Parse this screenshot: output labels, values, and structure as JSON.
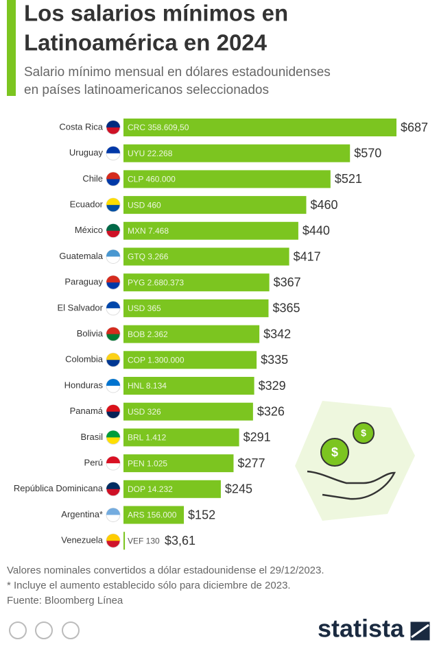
{
  "chart_data": {
    "type": "bar",
    "title": [
      "Los salarios mínimos en",
      "Latinoamérica en 2024"
    ],
    "subtitle": [
      "Salario mínimo mensual en dólares estadounidenses",
      "en países latinoamericanos seleccionados"
    ],
    "categories": [
      "Costa Rica",
      "Uruguay",
      "Chile",
      "Ecuador",
      "México",
      "Guatemala",
      "Paraguay",
      "El Salvador",
      "Bolivia",
      "Colombia",
      "Honduras",
      "Panamá",
      "Brasil",
      "Perú",
      "República Dominicana",
      "Argentina*",
      "Venezuela"
    ],
    "values": [
      687,
      570,
      521,
      460,
      440,
      417,
      367,
      365,
      342,
      335,
      329,
      326,
      291,
      277,
      245,
      152,
      3.61
    ],
    "value_labels": [
      "$687",
      "$570",
      "$521",
      "$460",
      "$440",
      "$417",
      "$367",
      "$365",
      "$342",
      "$335",
      "$329",
      "$326",
      "$291",
      "$277",
      "$245",
      "$152",
      "$3,61"
    ],
    "local_labels": [
      "CRC 358.609,50",
      "UYU 22.268",
      "CLP 460.000",
      "USD 460",
      "MXN 7.468",
      "GTQ 3.266",
      "PYG 2.680.373",
      "USD 365",
      "BOB 2.362",
      "COP 1.300.000",
      "HNL 8.134",
      "USD 326",
      "BRL 1.412",
      "PEN 1.025",
      "DOP 14.232",
      "ARS 156.000",
      "VEF 130"
    ],
    "color": "#7cc520",
    "notes": [
      "Valores nominales convertidos a dólar estadounidense el 29/12/2023.",
      "* Incluye el aumento establecido sólo para diciembre de 2023.",
      "Fuente: Bloomberg Línea"
    ],
    "logo": "statista"
  }
}
